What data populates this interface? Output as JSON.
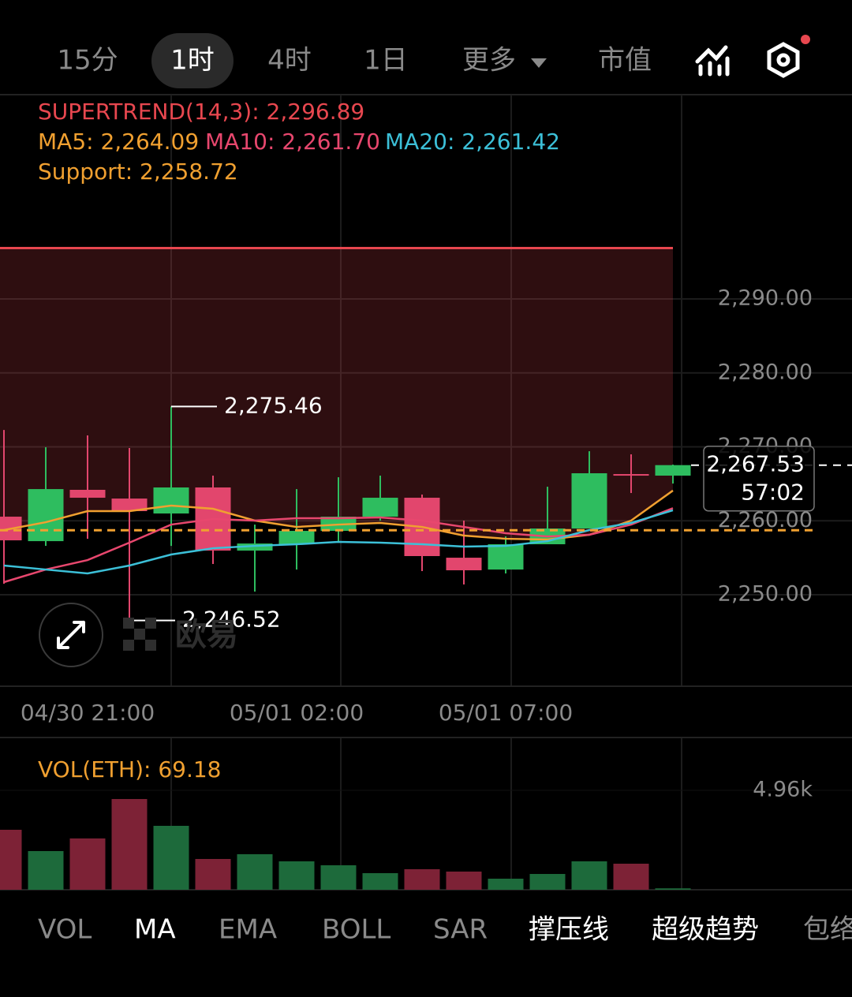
{
  "tabs": [
    {
      "label": "15分",
      "active": false
    },
    {
      "label": "1时",
      "active": true
    },
    {
      "label": "4时",
      "active": false
    },
    {
      "label": "1日",
      "active": false
    },
    {
      "label": "更多",
      "active": false
    },
    {
      "label": "市值",
      "active": false
    }
  ],
  "indicator_tabs": [
    {
      "label": "VOL",
      "active": false
    },
    {
      "label": "MA",
      "active": true
    },
    {
      "label": "EMA",
      "active": false
    },
    {
      "label": "BOLL",
      "active": false
    },
    {
      "label": "SAR",
      "active": false
    },
    {
      "label": "撑压线",
      "active": true
    },
    {
      "label": "超级趋势",
      "active": true
    },
    {
      "label": "包络",
      "active": false
    }
  ],
  "watermark": "欧易",
  "chart_data": [
    {
      "type": "candlestick",
      "categories": [
        null,
        null,
        "04/30 21:00",
        null,
        null,
        null,
        null,
        "05/01 02:00",
        null,
        null,
        null,
        null,
        "05/01 07:00",
        null,
        null,
        null,
        null
      ],
      "open": [
        2260.56,
        2257.25,
        2264.19,
        2263.01,
        2260.99,
        2264.51,
        2255.97,
        2256.83,
        2258.64,
        2260.56,
        2263.12,
        2255.01,
        2253.41,
        2256.83,
        2258.96,
        2266.32,
        2266.11
      ],
      "high": [
        2272.29,
        2269.95,
        2271.55,
        2269.84,
        2275.46,
        2266.11,
        2259.49,
        2264.29,
        2265.89,
        2266.11,
        2263.55,
        2260.03,
        2257.89,
        2264.61,
        2269.41,
        2268.99,
        2267.6
      ],
      "low": [
        2251.49,
        2256.61,
        2257.57,
        2246.52,
        2256.61,
        2254.16,
        2250.43,
        2253.41,
        2257.04,
        2260.03,
        2253.2,
        2251.39,
        2252.88,
        2256.83,
        2258.96,
        2263.76,
        2265.04
      ],
      "close": [
        2257.36,
        2264.29,
        2263.12,
        2261.31,
        2264.51,
        2255.97,
        2256.93,
        2258.64,
        2260.56,
        2263.12,
        2255.23,
        2253.31,
        2256.83,
        2258.96,
        2266.43,
        2266.11,
        2267.53
      ],
      "up_color": "#2ebd5f",
      "down_color": "#e2466d",
      "ylim": [
        2237.63,
        2317.63
      ],
      "yticks": [
        {
          "value": 2290,
          "label": "2,290.00"
        },
        {
          "value": 2280,
          "label": "2,280.00"
        },
        {
          "value": 2270,
          "label": "2,270.00"
        },
        {
          "value": 2260,
          "label": "2,260.00"
        },
        {
          "value": 2250,
          "label": "2,250.00"
        }
      ],
      "supertrend": {
        "label": "SUPERTREND(14,3): 2,296.89",
        "value": 2296.89,
        "color": "#e8474f"
      },
      "ma": [
        {
          "label": "MA5: 2,264.09",
          "color": "#f0a030",
          "values": [
            2258.75,
            2259.81,
            2261.31,
            2261.31,
            2262.05,
            2261.63,
            2260.03,
            2259.17,
            2259.49,
            2259.71,
            2259.17,
            2258.0,
            2257.57,
            2257.47,
            2258.11,
            2260.03,
            2264.09
          ]
        },
        {
          "label": "MA10: 2,261.70",
          "color": "#e8476e",
          "values": [
            2251.71,
            2253.41,
            2254.69,
            2257.04,
            2259.49,
            2260.24,
            2260.03,
            2260.35,
            2260.35,
            2260.45,
            2260.03,
            2259.17,
            2258.32,
            2257.89,
            2258.11,
            2259.49,
            2261.7
          ]
        },
        {
          "label": "MA20: 2,261.42",
          "color": "#3cc0d8",
          "values": [
            2253.95,
            2253.41,
            2252.88,
            2253.95,
            2255.44,
            2256.29,
            2256.61,
            2256.83,
            2257.15,
            2257.04,
            2256.83,
            2256.51,
            2256.61,
            2257.25,
            2258.75,
            2259.71,
            2261.42
          ]
        }
      ],
      "support": {
        "label": "Support: 2,258.72",
        "value": 2258.72,
        "color": "#f0a030"
      },
      "last_price": {
        "value": 2267.53,
        "label": "2,267.53",
        "countdown": "57:02"
      },
      "annotations": [
        {
          "value": 2275.46,
          "text": "2,275.46",
          "index": 4
        },
        {
          "value": 2246.52,
          "text": "2,246.52",
          "index": 3
        }
      ]
    },
    {
      "type": "bar",
      "label": "VOL(ETH): 69.18",
      "values": [
        2992,
        1929,
        2559,
        4527,
        3189,
        1535,
        1772,
        1417,
        1220,
        827,
        1024,
        906,
        551,
        787,
        1417,
        1299,
        69.18
      ],
      "up_color": "#1d6a3b",
      "down_color": "#7d2236",
      "ylim": [
        0,
        7597
      ],
      "yticks": [
        {
          "value": 4960,
          "label": "4.96k"
        }
      ]
    }
  ]
}
